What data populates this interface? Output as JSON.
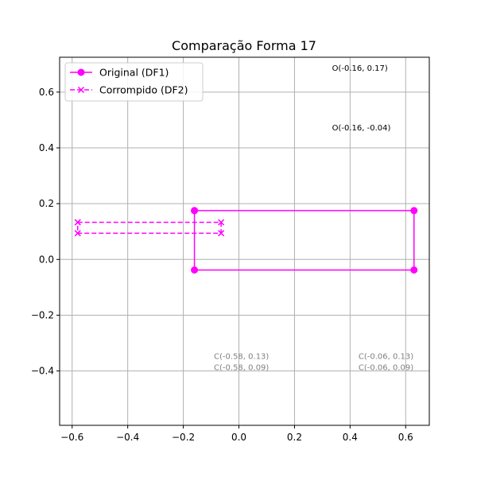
{
  "chart_data": {
    "type": "line",
    "title": "Comparação Forma 17",
    "xlabel": "",
    "ylabel": "",
    "xlim": [
      -0.645,
      0.685
    ],
    "ylim": [
      -0.595,
      0.725
    ],
    "grid": true,
    "legend_position": "top-left",
    "xticks": [
      -0.6,
      -0.4,
      -0.2,
      0.0,
      0.2,
      0.4,
      0.6
    ],
    "xtick_labels": [
      "−0.6",
      "−0.4",
      "−0.2",
      "0.0",
      "0.2",
      "0.4",
      "0.6"
    ],
    "yticks": [
      0.6,
      0.4,
      0.2,
      0.0,
      -0.2,
      -0.4
    ],
    "ytick_labels": [
      "0.6",
      "0.4",
      "0.2",
      "0.0",
      "−0.2",
      "−0.4"
    ],
    "series": [
      {
        "name": "Original (DF1)",
        "color": "#ff00ff",
        "linestyle": "solid",
        "marker": "circle",
        "x": [
          -0.16,
          0.63,
          0.63,
          -0.16,
          -0.16
        ],
        "y": [
          0.175,
          0.175,
          -0.038,
          -0.038,
          0.175
        ]
      },
      {
        "name": "Corrompido (DF2)",
        "color": "#ff00ff",
        "linestyle": "dashed",
        "marker": "x",
        "x": [
          -0.58,
          -0.064,
          -0.064,
          -0.58,
          -0.58
        ],
        "y": [
          0.133,
          0.133,
          0.094,
          0.094,
          0.133
        ]
      }
    ],
    "annotations": [
      {
        "text": "O(-0.16, 0.17)",
        "x": 0.335,
        "y": 0.676,
        "color": "#000000"
      },
      {
        "text": "O(-0.16, -0.04)",
        "x": 0.335,
        "y": 0.462,
        "color": "#000000"
      },
      {
        "text": "C(-0.58, 0.13)",
        "x": -0.09,
        "y": -0.357,
        "color": "#808080"
      },
      {
        "text": "C(-0.58, 0.09)",
        "x": -0.09,
        "y": -0.397,
        "color": "#808080"
      },
      {
        "text": "C(-0.06, 0.13)",
        "x": 0.43,
        "y": -0.357,
        "color": "#808080"
      },
      {
        "text": "C(-0.06, 0.09)",
        "x": 0.43,
        "y": -0.397,
        "color": "#808080"
      }
    ]
  }
}
